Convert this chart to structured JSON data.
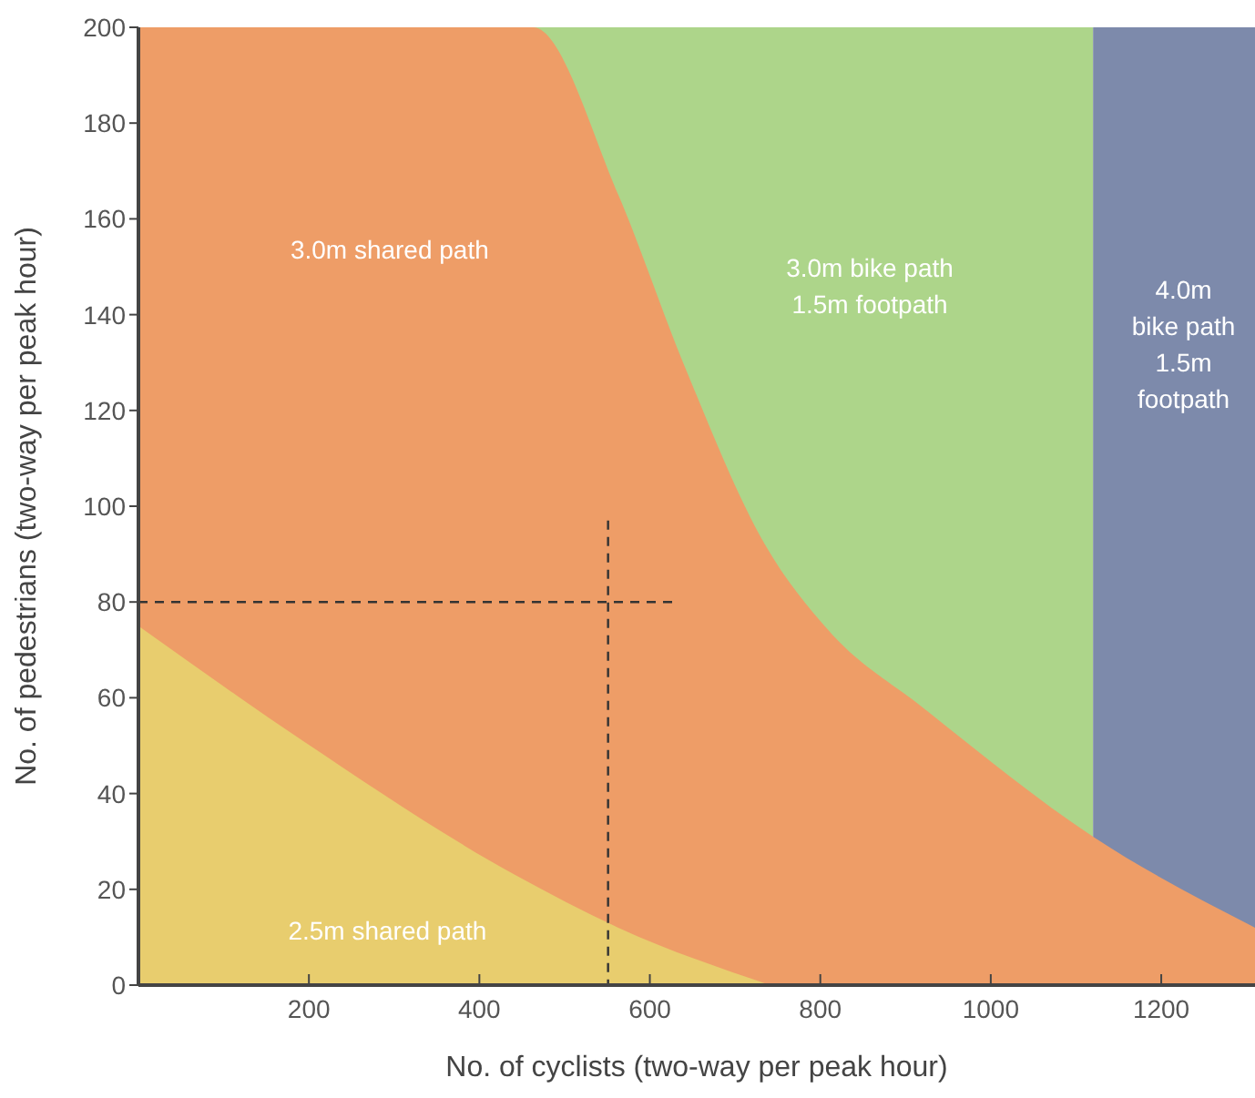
{
  "chart_data": {
    "type": "area",
    "xlabel": "No. of cyclists (two-way per peak hour)",
    "ylabel": "No. of pedestrians (two-way per peak hour)",
    "xlim": [
      0,
      1310
    ],
    "xticks": [
      200,
      400,
      600,
      800,
      1000,
      1200
    ],
    "ylim": [
      0,
      200
    ],
    "yticks": [
      0,
      20,
      40,
      60,
      80,
      100,
      120,
      140,
      160,
      180,
      200
    ],
    "grid": false,
    "series": [
      {
        "color": "#add58a",
        "x": [
          0,
          1120
        ],
        "values": [
          200,
          200
        ]
      },
      {
        "color": "#7d8aab",
        "x": [
          1120,
          1310
        ],
        "values": [
          200,
          200
        ]
      },
      {
        "color": "#ee9d67",
        "x": [
          0,
          463,
          563,
          639,
          735,
          810,
          920,
          1120,
          1310
        ],
        "values": [
          200,
          200,
          165,
          130,
          92,
          74,
          58,
          31,
          12
        ]
      },
      {
        "color": "#e8cd6e",
        "x": [
          0,
          193,
          442,
          563,
          741
        ],
        "values": [
          75,
          51,
          23,
          12,
          0
        ]
      },
      {
        "type": "line",
        "color": "#333333",
        "line_style": "dashed",
        "x": [
          0,
          628
        ],
        "values": [
          80,
          80
        ]
      },
      {
        "type": "line",
        "color": "#333333",
        "line_style": "dashed",
        "x": [
          551,
          551
        ],
        "values": [
          97,
          0
        ]
      }
    ],
    "annotations": [
      "3.0m shared path",
      "3.0m bike path\n1.5m footpath",
      "4.0m\nbike path\n1.5m\nfootpath",
      "2.5m shared path"
    ]
  }
}
